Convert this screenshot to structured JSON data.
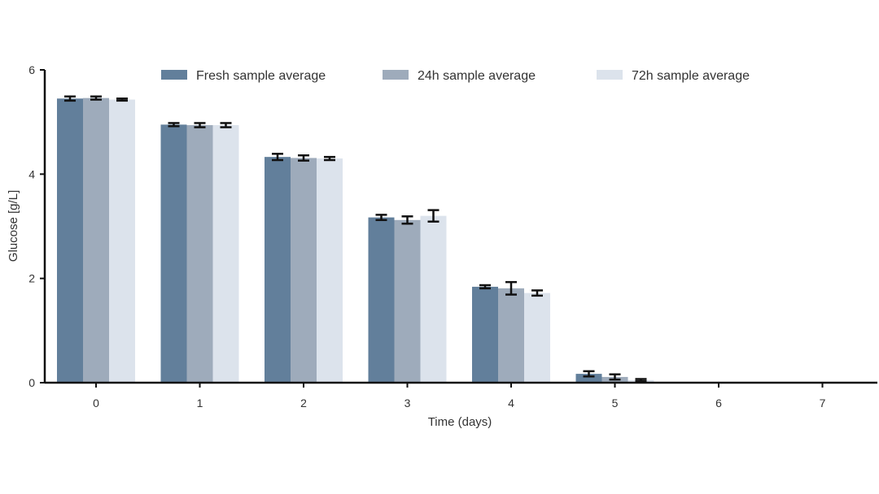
{
  "chart_data": {
    "type": "bar",
    "xlabel": "Time (days)",
    "ylabel": "Glucose [g/L]",
    "categories": [
      "0",
      "1",
      "2",
      "3",
      "4",
      "5",
      "6",
      "7"
    ],
    "ylim": [
      0,
      6
    ],
    "yticks": [
      "0",
      "2",
      "4",
      "6"
    ],
    "legend_position": "top",
    "series": [
      {
        "name": "Fresh sample average",
        "color": "#627f9b",
        "values": [
          5.45,
          4.95,
          4.33,
          3.17,
          1.84,
          0.17,
          0,
          0
        ],
        "errors": [
          0.04,
          0.03,
          0.06,
          0.05,
          0.03,
          0.05,
          0,
          0
        ]
      },
      {
        "name": "24h sample average",
        "color": "#9eabbb",
        "values": [
          5.46,
          4.94,
          4.31,
          3.12,
          1.81,
          0.11,
          0,
          0
        ],
        "errors": [
          0.03,
          0.04,
          0.05,
          0.07,
          0.12,
          0.05,
          0,
          0
        ]
      },
      {
        "name": "72h sample average",
        "color": "#dce3ec",
        "values": [
          5.43,
          4.94,
          4.3,
          3.2,
          1.72,
          0.05,
          0,
          0
        ],
        "errors": [
          0.02,
          0.04,
          0.03,
          0.11,
          0.05,
          0.02,
          0,
          0
        ]
      }
    ]
  }
}
